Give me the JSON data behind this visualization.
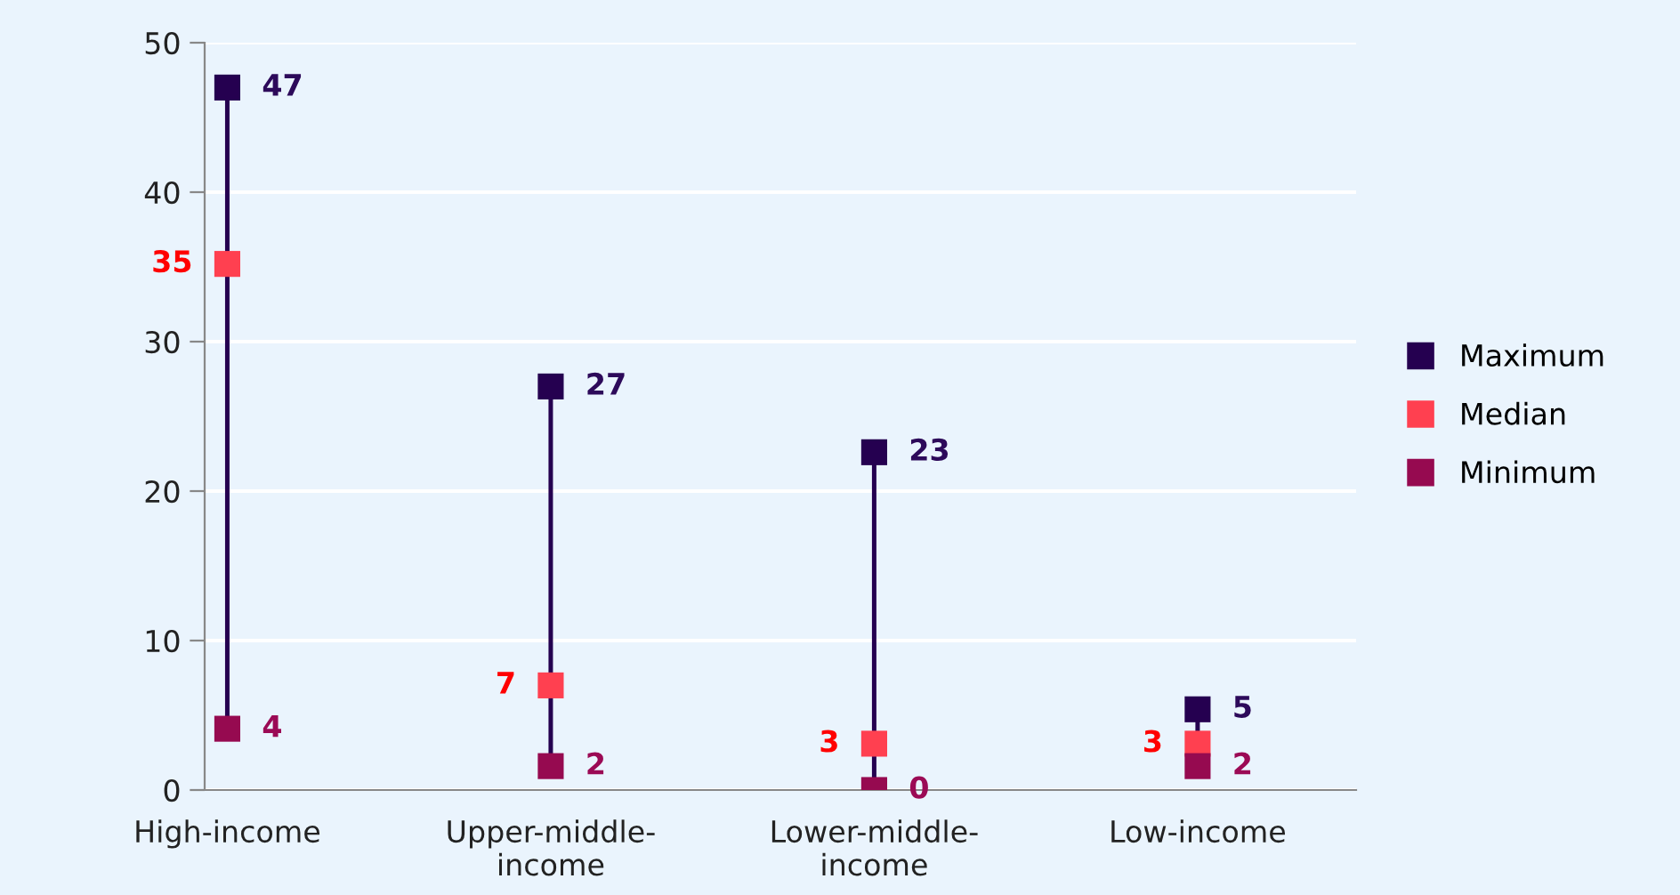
{
  "chart_data": {
    "type": "scatter",
    "categories": [
      "High-income",
      "Upper-middle-\nincome",
      "Lower-middle-\nincome",
      "Low-income"
    ],
    "series": [
      {
        "name": "Maximum",
        "color": "#250050",
        "values": [
          47,
          27,
          22.6,
          5.4
        ],
        "value_labels": [
          "47",
          "27",
          "23",
          "5"
        ]
      },
      {
        "name": "Median",
        "color": "#ff4050",
        "values": [
          35.2,
          7,
          3.1,
          3.1
        ],
        "value_labels": [
          "35",
          "7",
          "3",
          "3"
        ]
      },
      {
        "name": "Minimum",
        "color": "#960a50",
        "values": [
          4.1,
          1.6,
          0,
          1.6
        ],
        "value_labels": [
          "4",
          "2",
          "0",
          "2"
        ]
      }
    ],
    "ylim": [
      0,
      50
    ],
    "yticks": [
      0,
      10,
      20,
      30,
      40,
      50
    ],
    "grid": "y",
    "legend": "right",
    "marker": "square"
  }
}
